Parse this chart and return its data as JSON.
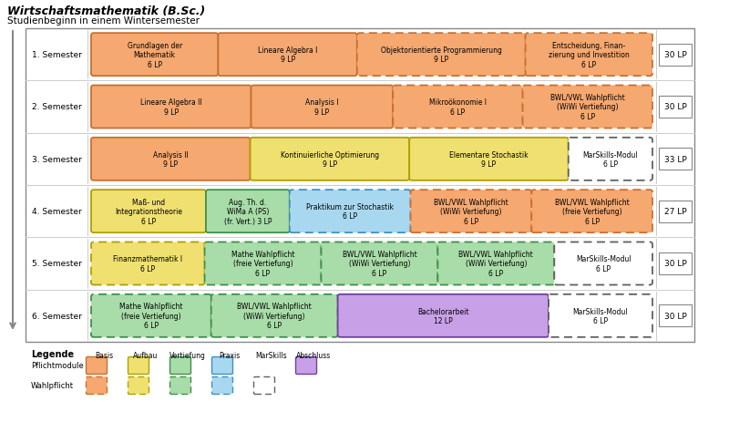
{
  "title": "Wirtschaftsmathematik (B.Sc.)",
  "subtitle": "Studienbeginn in einem Wintersemester",
  "fig_width": 8.0,
  "fig_height": 4.64,
  "colors": {
    "basis_fill": "#F5A870",
    "basis_edge": "#C87030",
    "aufbau_fill": "#F0E070",
    "aufbau_edge": "#B0A000",
    "vertiefung_fill": "#A8DCA8",
    "vertiefung_edge": "#40904A",
    "praxis_fill": "#A8D8F0",
    "praxis_edge": "#4090C0",
    "marskills_fill": "#FFFFFF",
    "marskills_edge": "#606060",
    "abschluss_fill": "#C8A0E8",
    "abschluss_edge": "#7040A0",
    "outer_border": "#888888",
    "sep_line": "#CCCCCC"
  },
  "semesters": [
    {
      "label": "1. Semester",
      "lp": "30 LP",
      "modules": [
        {
          "name": "Grundlagen der\nMathematik\n6 LP",
          "type": "basis",
          "dashed": false,
          "wf": 0.215
        },
        {
          "name": "Lineare Algebra I\n9 LP",
          "type": "basis",
          "dashed": false,
          "wf": 0.235
        },
        {
          "name": "Objektorientierte Programmierung\n9 LP",
          "type": "basis",
          "dashed": true,
          "wf": 0.285
        },
        {
          "name": "Entscheidung, Finan-\nzierung und Investition\n6 LP",
          "type": "basis",
          "dashed": true,
          "wf": 0.215
        }
      ]
    },
    {
      "label": "2. Semester",
      "lp": "30 LP",
      "modules": [
        {
          "name": "Lineare Algebra II\n9 LP",
          "type": "basis",
          "dashed": false,
          "wf": 0.265
        },
        {
          "name": "Analysis I\n9 LP",
          "type": "basis",
          "dashed": false,
          "wf": 0.235
        },
        {
          "name": "Mikroökonomie I\n6 LP",
          "type": "basis",
          "dashed": true,
          "wf": 0.215
        },
        {
          "name": "BWL/VWL Wahlpflicht\n(WiWi Vertiefung)\n6 LP",
          "type": "basis",
          "dashed": true,
          "wf": 0.215
        }
      ]
    },
    {
      "label": "3. Semester",
      "lp": "33 LP",
      "modules": [
        {
          "name": "Analysis II\n9 LP",
          "type": "basis",
          "dashed": false,
          "wf": 0.265
        },
        {
          "name": "Kontinuierliche Optimierung\n9 LP",
          "type": "aufbau",
          "dashed": false,
          "wf": 0.265
        },
        {
          "name": "Elementare Stochastik\n9 LP",
          "type": "aufbau",
          "dashed": false,
          "wf": 0.265
        },
        {
          "name": "MarSkills-Modul\n6 LP",
          "type": "marskills",
          "dashed": true,
          "wf": 0.14
        }
      ]
    },
    {
      "label": "4. Semester",
      "lp": "27 LP",
      "modules": [
        {
          "name": "Maß- und\nIntegrationstheorie\n6 LP",
          "type": "aufbau",
          "dashed": false,
          "wf": 0.185
        },
        {
          "name": "Aug. Th. d.\nWiMa A (PS)\n(fr. Vert.) 3 LP",
          "type": "vertiefung",
          "dashed": false,
          "wf": 0.135
        },
        {
          "name": "Praktikum zur Stochastik\n6 LP",
          "type": "praxis",
          "dashed": true,
          "wf": 0.195
        },
        {
          "name": "BWL/VWL Wahlpflicht\n(WiWi Vertiefung)\n6 LP",
          "type": "basis",
          "dashed": true,
          "wf": 0.195
        },
        {
          "name": "BWL/VWL Wahlpflicht\n(freie Vertiefung)\n6 LP",
          "type": "basis",
          "dashed": true,
          "wf": 0.195
        }
      ]
    },
    {
      "label": "5. Semester",
      "lp": "30 LP",
      "modules": [
        {
          "name": "Finanzmathematik I\n6 LP",
          "type": "aufbau",
          "dashed": true,
          "wf": 0.185
        },
        {
          "name": "Mathe Wahlpflicht\n(freie Vertiefung)\n6 LP",
          "type": "vertiefung",
          "dashed": true,
          "wf": 0.19
        },
        {
          "name": "BWL/VWL Wahlpflicht\n(WiWi Vertiefung)\n6 LP",
          "type": "vertiefung",
          "dashed": true,
          "wf": 0.19
        },
        {
          "name": "BWL/VWL Wahlpflicht\n(WiWi Vertiefung)\n6 LP",
          "type": "vertiefung",
          "dashed": true,
          "wf": 0.19
        },
        {
          "name": "MarSkills-Modul\n6 LP",
          "type": "marskills",
          "dashed": true,
          "wf": 0.16
        }
      ]
    },
    {
      "label": "6. Semester",
      "lp": "30 LP",
      "modules": [
        {
          "name": "Mathe Wahlpflicht\n(freie Vertiefung)\n6 LP",
          "type": "vertiefung",
          "dashed": true,
          "wf": 0.185
        },
        {
          "name": "BWL/VWL Wahlpflicht\n(WiWi Vertiefung)\n6 LP",
          "type": "vertiefung",
          "dashed": true,
          "wf": 0.195
        },
        {
          "name": "Bachelorarbeit\n12 LP",
          "type": "abschluss",
          "dashed": false,
          "wf": 0.325
        },
        {
          "name": "MarSkills-Modul\n6 LP",
          "type": "marskills",
          "dashed": true,
          "wf": 0.16
        }
      ]
    }
  ],
  "legend_types": [
    "Basis",
    "Aufbau",
    "Vertiefung",
    "Praxis",
    "MarSkills",
    "Abschluss"
  ],
  "legend_pflicht_fills": [
    "#F5A870",
    "#F0E070",
    "#A8DCA8",
    "#A8D8F0",
    "#FFFFFF",
    "#C8A0E8"
  ],
  "legend_pflicht_edges": [
    "#C87030",
    "#B0A000",
    "#40904A",
    "#4090C0",
    "#606060",
    "#7040A0"
  ],
  "legend_wahlpflicht_fills": [
    "#F5A870",
    "#F0E070",
    "#A8DCA8",
    "#A8D8F0",
    "#FFFFFF"
  ],
  "legend_wahlpflicht_edges": [
    "#C87030",
    "#B0A000",
    "#40904A",
    "#4090C0",
    "#606060"
  ]
}
